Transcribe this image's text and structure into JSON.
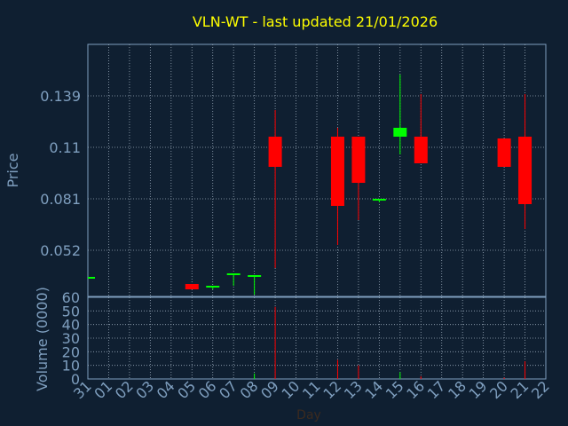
{
  "chart_data": [
    {
      "type": "candlestick",
      "title": "VLN-WT - last updated 21/01/2026",
      "xlabel": "Day",
      "ylabel": "Price",
      "x_ticks": [
        "31",
        "01",
        "02",
        "03",
        "04",
        "05",
        "06",
        "07",
        "08",
        "09",
        "10",
        "11",
        "12",
        "13",
        "14",
        "15",
        "16",
        "17",
        "18",
        "19",
        "20",
        "21",
        "22"
      ],
      "y_ticks": [
        0.052,
        0.081,
        0.11,
        0.139
      ],
      "ylim": [
        0.026,
        0.168
      ],
      "grid": true,
      "up_color": "#00ff00",
      "down_color": "#ff0000",
      "candles": [
        {
          "day": "31",
          "open": 0.037,
          "close": 0.037,
          "high": 0.037,
          "low": 0.037
        },
        {
          "day": "05",
          "open": 0.033,
          "close": 0.03,
          "high": 0.033,
          "low": 0.03
        },
        {
          "day": "06",
          "open": 0.031,
          "close": 0.032,
          "high": 0.032,
          "low": 0.03
        },
        {
          "day": "07",
          "open": 0.038,
          "close": 0.039,
          "high": 0.039,
          "low": 0.032
        },
        {
          "day": "08",
          "open": 0.037,
          "close": 0.038,
          "high": 0.038,
          "low": 0.027
        },
        {
          "day": "09",
          "open": 0.116,
          "close": 0.099,
          "high": 0.131,
          "low": 0.042
        },
        {
          "day": "12",
          "open": 0.116,
          "close": 0.077,
          "high": 0.121,
          "low": 0.055
        },
        {
          "day": "13",
          "open": 0.116,
          "close": 0.09,
          "high": 0.116,
          "low": 0.069
        },
        {
          "day": "14",
          "open": 0.08,
          "close": 0.081,
          "high": 0.081,
          "low": 0.079
        },
        {
          "day": "15",
          "open": 0.116,
          "close": 0.121,
          "high": 0.151,
          "low": 0.106
        },
        {
          "day": "16",
          "open": 0.116,
          "close": 0.101,
          "high": 0.14,
          "low": 0.101
        },
        {
          "day": "20",
          "open": 0.115,
          "close": 0.099,
          "high": 0.115,
          "low": 0.099
        },
        {
          "day": "21",
          "open": 0.116,
          "close": 0.078,
          "high": 0.14,
          "low": 0.064
        }
      ]
    },
    {
      "type": "bar",
      "ylabel": "Volume (0000)",
      "y_ticks": [
        0,
        10,
        20,
        30,
        40,
        50,
        60
      ],
      "ylim": [
        0,
        60
      ],
      "volumes": [
        {
          "day": "08",
          "value": 4,
          "color": "#00ff00"
        },
        {
          "day": "09",
          "value": 53,
          "color": "#ff0000"
        },
        {
          "day": "12",
          "value": 14,
          "color": "#ff0000"
        },
        {
          "day": "13",
          "value": 10,
          "color": "#ff0000"
        },
        {
          "day": "15",
          "value": 5,
          "color": "#00ff00"
        },
        {
          "day": "16",
          "value": 2,
          "color": "#ff0000"
        },
        {
          "day": "20",
          "value": 1,
          "color": "#ff0000"
        },
        {
          "day": "21",
          "value": 13,
          "color": "#ff0000"
        }
      ]
    }
  ]
}
